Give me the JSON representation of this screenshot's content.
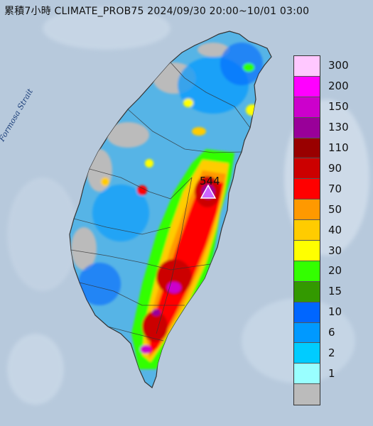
{
  "title": "累積7小時 CLIMATE_PROB75 2024/09/30 20:00~10/01 03:00",
  "strait_label": "Formosa Strait",
  "max_station": {
    "value": "544"
  },
  "colors": {
    "sea": "#b7c9dc",
    "land": "#7fb8e0"
  },
  "legend": {
    "items": [
      {
        "label": "300",
        "color": "#ffc8ff"
      },
      {
        "label": "200",
        "color": "#ff00ff"
      },
      {
        "label": "150",
        "color": "#cc00cc"
      },
      {
        "label": "130",
        "color": "#990099"
      },
      {
        "label": "110",
        "color": "#990000"
      },
      {
        "label": "90",
        "color": "#cc0000"
      },
      {
        "label": "70",
        "color": "#ff0000"
      },
      {
        "label": "50",
        "color": "#ff9900"
      },
      {
        "label": "40",
        "color": "#ffcc00"
      },
      {
        "label": "30",
        "color": "#ffff00"
      },
      {
        "label": "20",
        "color": "#33ff00"
      },
      {
        "label": "15",
        "color": "#339900"
      },
      {
        "label": "10",
        "color": "#0066ff"
      },
      {
        "label": "6",
        "color": "#0099ff"
      },
      {
        "label": "2",
        "color": "#00ccff"
      },
      {
        "label": "1",
        "color": "#99ffff"
      },
      {
        "label": "",
        "color": "#bbbbbb"
      }
    ]
  }
}
